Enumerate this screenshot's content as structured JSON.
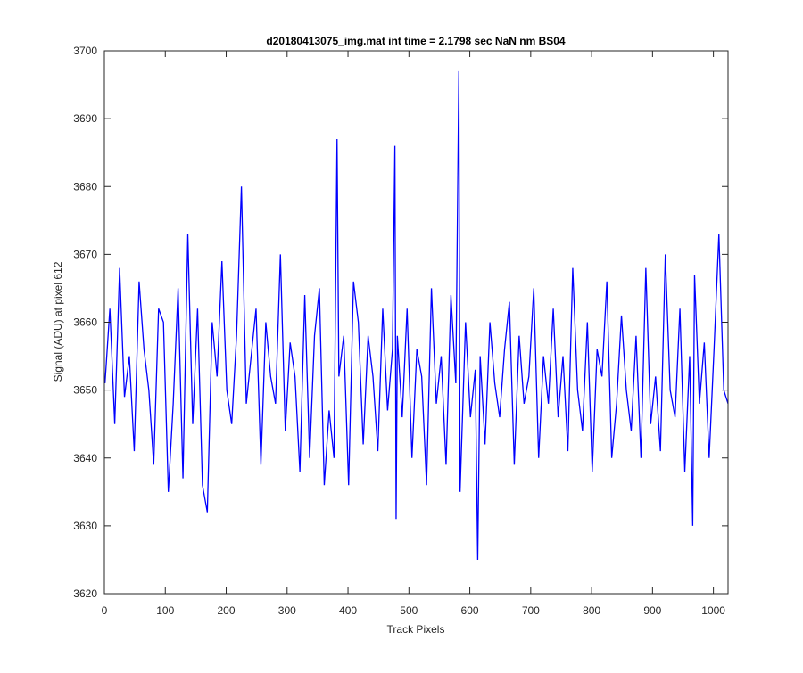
{
  "chart_data": {
    "type": "line",
    "title": "d20180413075_img.mat int time = 2.1798 sec  NaN nm BS04",
    "xlabel": "Track Pixels",
    "ylabel": "Signal (ADU) at pixel 612",
    "xlim": [
      0,
      1024
    ],
    "ylim": [
      3620,
      3700
    ],
    "xticks": [
      0,
      100,
      200,
      300,
      400,
      500,
      600,
      700,
      800,
      900,
      1000
    ],
    "yticks": [
      3620,
      3630,
      3640,
      3650,
      3660,
      3670,
      3680,
      3690,
      3700
    ],
    "grid": false,
    "legend": "none",
    "series": [
      {
        "color": "#0000ff",
        "x": [
          1,
          9,
          17,
          25,
          33,
          41,
          49,
          57,
          65,
          73,
          81,
          89,
          97,
          105,
          113,
          121,
          129,
          137,
          145,
          153,
          161,
          169,
          177,
          185,
          193,
          201,
          209,
          217,
          225,
          233,
          241,
          249,
          257,
          265,
          273,
          281,
          289,
          297,
          305,
          313,
          321,
          329,
          337,
          345,
          353,
          361,
          369,
          377,
          382,
          385,
          393,
          401,
          409,
          417,
          425,
          433,
          441,
          449,
          457,
          465,
          473,
          477,
          479,
          481,
          489,
          497,
          505,
          513,
          521,
          529,
          537,
          545,
          553,
          561,
          569,
          577,
          582,
          584,
          593,
          601,
          609,
          613,
          617,
          625,
          633,
          641,
          649,
          657,
          665,
          673,
          681,
          689,
          697,
          705,
          713,
          721,
          729,
          737,
          745,
          753,
          761,
          769,
          777,
          785,
          793,
          801,
          809,
          817,
          825,
          833,
          841,
          849,
          857,
          865,
          873,
          881,
          889,
          897,
          905,
          913,
          921,
          929,
          937,
          945,
          953,
          961,
          966,
          969,
          977,
          985,
          993,
          1001,
          1009,
          1017,
          1024
        ],
        "y": [
          3651,
          3662,
          3645,
          3668,
          3649,
          3655,
          3641,
          3666,
          3656,
          3650,
          3639,
          3662,
          3660,
          3635,
          3648,
          3665,
          3637,
          3673,
          3645,
          3662,
          3636,
          3632,
          3660,
          3652,
          3669,
          3650,
          3645,
          3658,
          3680,
          3648,
          3655,
          3662,
          3639,
          3660,
          3652,
          3648,
          3670,
          3644,
          3657,
          3652,
          3638,
          3664,
          3640,
          3658,
          3665,
          3636,
          3647,
          3640,
          3687,
          3652,
          3658,
          3636,
          3666,
          3660,
          3642,
          3658,
          3652,
          3641,
          3662,
          3647,
          3656,
          3686,
          3631,
          3658,
          3646,
          3662,
          3640,
          3656,
          3652,
          3636,
          3665,
          3648,
          3655,
          3639,
          3664,
          3651,
          3697,
          3635,
          3660,
          3646,
          3653,
          3625,
          3655,
          3642,
          3660,
          3651,
          3646,
          3656,
          3663,
          3639,
          3658,
          3648,
          3652,
          3665,
          3640,
          3655,
          3648,
          3662,
          3646,
          3655,
          3641,
          3668,
          3650,
          3644,
          3660,
          3638,
          3656,
          3652,
          3666,
          3640,
          3648,
          3661,
          3650,
          3644,
          3658,
          3640,
          3668,
          3645,
          3652,
          3641,
          3670,
          3650,
          3646,
          3662,
          3638,
          3655,
          3630,
          3667,
          3648,
          3657,
          3640,
          3656,
          3673,
          3650,
          3648
        ]
      }
    ]
  }
}
